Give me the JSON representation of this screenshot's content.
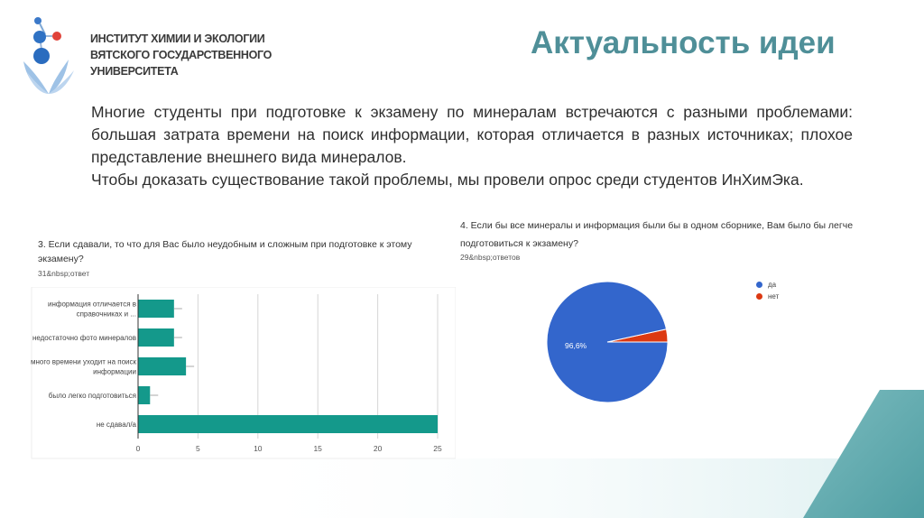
{
  "institute": {
    "lines": [
      "ИНСТИТУТ ХИМИИ И ЭКОЛОГИИ",
      "ВЯТСКОГО ГОСУДАРСТВЕННОГО",
      "УНИВЕРСИТЕТА"
    ]
  },
  "title": "Актуальность идеи",
  "paragraphs": [
    "Многие студенты при подготовке к экзамену по минералам встречаются с разными проблемами: большая затрата времени на поиск информации, которая отличается в разных источниках; плохое представление внешнего вида минералов.",
    "Чтобы доказать существование такой проблемы, мы провели опрос среди студентов ИнХимЭка."
  ],
  "chart1": {
    "question": "3. Если сдавали, то что для Вас было неудобным и сложным при подготовке к этому экзамену?",
    "responses": "31&nbsp;ответ"
  },
  "chart2": {
    "question": "4. Если бы все минералы и информация были бы в одном сборнике, Вам было бы легче подготовиться к экзамену?",
    "responses": "29&nbsp;ответов"
  },
  "colors": {
    "title": "#4f8f98",
    "bar": "#14998b",
    "pie_yes": "#3366cc",
    "pie_no": "#dc3912",
    "accent": "#5fa3a8"
  },
  "chart_data": [
    {
      "type": "bar",
      "orientation": "horizontal",
      "categories": [
        [
          "информация отличается в",
          "справочниках и ..."
        ],
        [
          "недостаточно фото минералов"
        ],
        [
          "много времени уходит на поиск",
          "информации"
        ],
        [
          "было легко подготовиться"
        ],
        [
          "не сдавал/а"
        ]
      ],
      "values": [
        3,
        3,
        4,
        1,
        25
      ],
      "xlim": [
        0,
        25
      ],
      "xticks": [
        "0",
        "5",
        "10",
        "15",
        "20",
        "25"
      ],
      "grid": true
    },
    {
      "type": "pie",
      "labels": [
        "да",
        "нет"
      ],
      "values": [
        96.6,
        3.4
      ],
      "data_label": "96,6%",
      "legend": "right"
    }
  ]
}
